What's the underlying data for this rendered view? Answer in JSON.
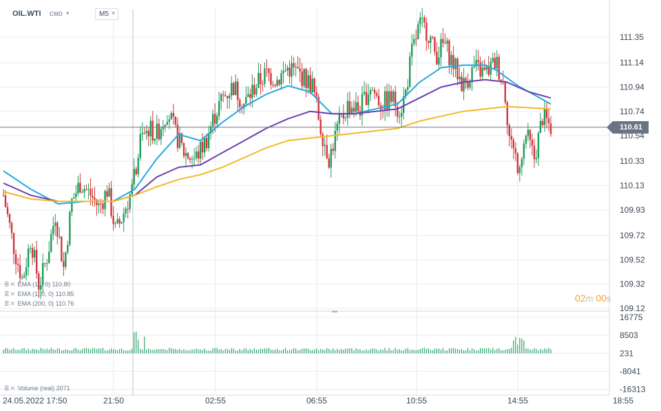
{
  "header": {
    "symbol": "OIL.WTI",
    "instrument_type": "CMD",
    "timeframe": "M5"
  },
  "indicators": [
    {
      "label": "EMA (10, 0) 110.80",
      "color": "#1fa9e1"
    },
    {
      "label": "EMA (100, 0) 110.85",
      "color": "#6a3fb0"
    },
    {
      "label": "EMA (200, 0) 110.76",
      "color": "#f2b829"
    }
  ],
  "volume_label": "Volume (real) 2071",
  "countdown": {
    "minutes": "02",
    "m": "m",
    "seconds": "00",
    "s": "s"
  },
  "current_price": "110.61",
  "chart_data": {
    "type": "candlestick",
    "symbol": "OIL.WTI",
    "timeframe": "M5",
    "price_ticks": [
      "111.35",
      "111.14",
      "110.94",
      "110.74",
      "110.54",
      "110.33",
      "110.13",
      "109.93",
      "109.72",
      "109.52",
      "109.32",
      "109.12"
    ],
    "price_ylim": [
      109.12,
      111.5
    ],
    "current_price": 110.61,
    "volume_ticks": [
      "16775",
      "8503",
      "231",
      "-8041",
      "-16313"
    ],
    "volume_ylim": [
      -16313,
      16775
    ],
    "time_labels": [
      "24.05.2022  17:50",
      "21:50",
      "02:55",
      "06:55",
      "10:55",
      "14:55",
      "18:55"
    ],
    "price_path": [
      [
        0,
        110.05
      ],
      [
        0.02,
        109.6
      ],
      [
        0.035,
        109.35
      ],
      [
        0.05,
        109.7
      ],
      [
        0.065,
        109.3
      ],
      [
        0.08,
        109.55
      ],
      [
        0.095,
        109.9
      ],
      [
        0.11,
        109.45
      ],
      [
        0.125,
        110.0
      ],
      [
        0.14,
        110.15
      ],
      [
        0.16,
        110.05
      ],
      [
        0.175,
        109.95
      ],
      [
        0.19,
        110.1
      ],
      [
        0.205,
        109.75
      ],
      [
        0.215,
        109.85
      ],
      [
        0.235,
        110.1
      ],
      [
        0.25,
        110.5
      ],
      [
        0.265,
        110.6
      ],
      [
        0.28,
        110.55
      ],
      [
        0.3,
        110.75
      ],
      [
        0.315,
        110.55
      ],
      [
        0.33,
        110.4
      ],
      [
        0.35,
        110.35
      ],
      [
        0.37,
        110.5
      ],
      [
        0.385,
        110.7
      ],
      [
        0.4,
        110.85
      ],
      [
        0.42,
        110.95
      ],
      [
        0.44,
        110.8
      ],
      [
        0.46,
        110.95
      ],
      [
        0.48,
        111.05
      ],
      [
        0.5,
        111.0
      ],
      [
        0.52,
        111.1
      ],
      [
        0.54,
        111.05
      ],
      [
        0.565,
        110.95
      ],
      [
        0.58,
        110.6
      ],
      [
        0.595,
        110.35
      ],
      [
        0.61,
        110.6
      ],
      [
        0.63,
        110.8
      ],
      [
        0.65,
        110.75
      ],
      [
        0.67,
        110.95
      ],
      [
        0.69,
        110.8
      ],
      [
        0.71,
        110.85
      ],
      [
        0.725,
        110.75
      ],
      [
        0.735,
        110.9
      ],
      [
        0.745,
        111.2
      ],
      [
        0.76,
        111.45
      ],
      [
        0.775,
        111.4
      ],
      [
        0.79,
        111.2
      ],
      [
        0.805,
        111.3
      ],
      [
        0.82,
        111.15
      ],
      [
        0.84,
        110.95
      ],
      [
        0.86,
        111.1
      ],
      [
        0.88,
        111.05
      ],
      [
        0.9,
        111.15
      ],
      [
        0.915,
        110.95
      ],
      [
        0.925,
        110.5
      ],
      [
        0.94,
        110.3
      ],
      [
        0.955,
        110.55
      ],
      [
        0.97,
        110.35
      ],
      [
        0.985,
        110.7
      ],
      [
        1.0,
        110.61
      ]
    ],
    "ema_series": [
      {
        "name": "EMA (10, 0)",
        "color": "#1fa9e1",
        "last": 110.8,
        "points": [
          [
            0,
            110.25
          ],
          [
            0.05,
            110.1
          ],
          [
            0.1,
            109.98
          ],
          [
            0.15,
            110.0
          ],
          [
            0.2,
            110.0
          ],
          [
            0.24,
            110.1
          ],
          [
            0.28,
            110.35
          ],
          [
            0.32,
            110.55
          ],
          [
            0.36,
            110.5
          ],
          [
            0.4,
            110.65
          ],
          [
            0.44,
            110.78
          ],
          [
            0.48,
            110.88
          ],
          [
            0.52,
            110.95
          ],
          [
            0.56,
            110.9
          ],
          [
            0.6,
            110.72
          ],
          [
            0.64,
            110.72
          ],
          [
            0.68,
            110.76
          ],
          [
            0.72,
            110.8
          ],
          [
            0.76,
            110.98
          ],
          [
            0.8,
            111.1
          ],
          [
            0.84,
            111.12
          ],
          [
            0.88,
            111.12
          ],
          [
            0.9,
            111.08
          ],
          [
            0.94,
            110.95
          ],
          [
            0.98,
            110.85
          ],
          [
            1.0,
            110.8
          ]
        ]
      },
      {
        "name": "EMA (100, 0)",
        "color": "#6a3fb0",
        "last": 110.85,
        "points": [
          [
            0,
            110.15
          ],
          [
            0.05,
            110.05
          ],
          [
            0.1,
            110.0
          ],
          [
            0.15,
            110.0
          ],
          [
            0.2,
            110.0
          ],
          [
            0.24,
            110.05
          ],
          [
            0.28,
            110.2
          ],
          [
            0.32,
            110.28
          ],
          [
            0.36,
            110.3
          ],
          [
            0.4,
            110.4
          ],
          [
            0.44,
            110.5
          ],
          [
            0.48,
            110.6
          ],
          [
            0.52,
            110.68
          ],
          [
            0.56,
            110.74
          ],
          [
            0.6,
            110.72
          ],
          [
            0.64,
            110.72
          ],
          [
            0.68,
            110.74
          ],
          [
            0.72,
            110.76
          ],
          [
            0.76,
            110.85
          ],
          [
            0.8,
            110.94
          ],
          [
            0.84,
            110.98
          ],
          [
            0.88,
            111.0
          ],
          [
            0.92,
            110.98
          ],
          [
            0.96,
            110.9
          ],
          [
            1.0,
            110.85
          ]
        ]
      },
      {
        "name": "EMA (200, 0)",
        "color": "#f2b829",
        "last": 110.76,
        "points": [
          [
            0,
            110.08
          ],
          [
            0.05,
            110.02
          ],
          [
            0.1,
            110.0
          ],
          [
            0.15,
            110.0
          ],
          [
            0.2,
            110.0
          ],
          [
            0.24,
            110.05
          ],
          [
            0.28,
            110.12
          ],
          [
            0.32,
            110.18
          ],
          [
            0.36,
            110.22
          ],
          [
            0.4,
            110.28
          ],
          [
            0.44,
            110.36
          ],
          [
            0.48,
            110.44
          ],
          [
            0.52,
            110.5
          ],
          [
            0.56,
            110.52
          ],
          [
            0.6,
            110.54
          ],
          [
            0.64,
            110.56
          ],
          [
            0.68,
            110.58
          ],
          [
            0.72,
            110.6
          ],
          [
            0.76,
            110.66
          ],
          [
            0.8,
            110.7
          ],
          [
            0.84,
            110.74
          ],
          [
            0.88,
            110.76
          ],
          [
            0.92,
            110.78
          ],
          [
            0.96,
            110.77
          ],
          [
            1.0,
            110.76
          ]
        ]
      }
    ],
    "candle_count": 265,
    "volume_spike_zones": [
      [
        0.25,
        3.2
      ],
      [
        0.94,
        2.6
      ]
    ],
    "volume_last": 2071,
    "colors": {
      "up": "#1e9a5a",
      "down": "#d3343a",
      "grid": "#e8ebef",
      "axis_text": "#3a4654",
      "price_line": "#6a7482"
    }
  }
}
